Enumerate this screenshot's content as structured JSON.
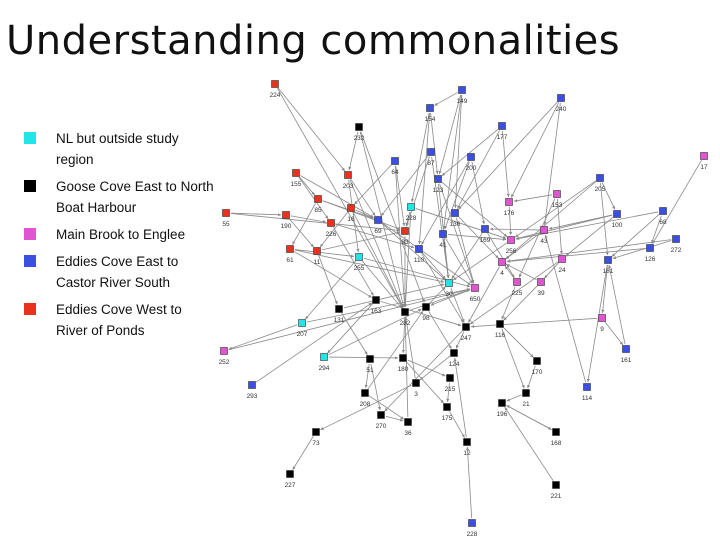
{
  "slide": {
    "title": "Understanding commonalities"
  },
  "legend": [
    {
      "label": "NL but outside study region",
      "color": "#22e5e5",
      "swatch": "cyan-swatch"
    },
    {
      "label": "Goose Cove East to North Boat Harbour",
      "color": "#000000",
      "swatch": "black-swatch"
    },
    {
      "label": "Main Brook to Englee",
      "color": "#e055d2",
      "swatch": "magenta-swatch"
    },
    {
      "label": "Eddies Cove East to Castor River South",
      "color": "#3b4fe0",
      "swatch": "blue-swatch"
    },
    {
      "label": "Eddies Cove West to River of Ponds",
      "color": "#e8321e",
      "swatch": "red-swatch"
    }
  ],
  "groups": {
    "cyan": "#22e5e5",
    "black": "#000000",
    "magenta": "#e055d2",
    "blue": "#3b4fe0",
    "red": "#e8321e"
  },
  "edge_color": "#8a8a8a",
  "nodes": [
    {
      "id": "224",
      "g": "red"
    },
    {
      "id": "149",
      "g": "blue"
    },
    {
      "id": "240",
      "g": "blue"
    },
    {
      "id": "154",
      "g": "blue"
    },
    {
      "id": "232",
      "g": "black"
    },
    {
      "id": "177",
      "g": "blue"
    },
    {
      "id": "87",
      "g": "blue"
    },
    {
      "id": "200",
      "g": "blue"
    },
    {
      "id": "64",
      "g": "blue"
    },
    {
      "id": "123",
      "g": "blue"
    },
    {
      "id": "155",
      "g": "red"
    },
    {
      "id": "203",
      "g": "red"
    },
    {
      "id": "205",
      "g": "blue"
    },
    {
      "id": "17",
      "g": "magenta"
    },
    {
      "id": "153",
      "g": "magenta"
    },
    {
      "id": "176",
      "g": "magenta"
    },
    {
      "id": "85",
      "g": "red"
    },
    {
      "id": "55",
      "g": "red"
    },
    {
      "id": "190",
      "g": "red"
    },
    {
      "id": "16",
      "g": "red"
    },
    {
      "id": "226",
      "g": "red"
    },
    {
      "id": "228",
      "g": "cyan"
    },
    {
      "id": "69",
      "g": "blue"
    },
    {
      "id": "100",
      "g": "blue"
    },
    {
      "id": "68",
      "g": "blue"
    },
    {
      "id": "272",
      "g": "blue"
    },
    {
      "id": "43",
      "g": "magenta"
    },
    {
      "id": "169",
      "g": "blue"
    },
    {
      "id": "136",
      "g": "blue"
    },
    {
      "id": "256",
      "g": "magenta"
    },
    {
      "id": "61",
      "g": "red"
    },
    {
      "id": "11",
      "g": "red"
    },
    {
      "id": "255",
      "g": "cyan"
    },
    {
      "id": "110",
      "g": "blue"
    },
    {
      "id": "181",
      "g": "blue"
    },
    {
      "id": "126",
      "g": "blue"
    },
    {
      "id": "24",
      "g": "magenta"
    },
    {
      "id": "4",
      "g": "magenta"
    },
    {
      "id": "83",
      "g": "red"
    },
    {
      "id": "41",
      "g": "blue"
    },
    {
      "id": "30",
      "g": "cyan"
    },
    {
      "id": "225",
      "g": "magenta"
    },
    {
      "id": "39",
      "g": "magenta"
    },
    {
      "id": "650",
      "g": "magenta"
    },
    {
      "id": "163",
      "g": "black"
    },
    {
      "id": "131",
      "g": "black"
    },
    {
      "id": "282",
      "g": "black"
    },
    {
      "id": "98",
      "g": "black"
    },
    {
      "id": "207",
      "g": "cyan"
    },
    {
      "id": "9",
      "g": "magenta"
    },
    {
      "id": "116",
      "g": "black"
    },
    {
      "id": "247",
      "g": "black"
    },
    {
      "id": "252",
      "g": "magenta"
    },
    {
      "id": "294",
      "g": "cyan"
    },
    {
      "id": "51",
      "g": "black"
    },
    {
      "id": "180",
      "g": "black"
    },
    {
      "id": "124",
      "g": "black"
    },
    {
      "id": "270",
      "g": "black"
    },
    {
      "id": "161",
      "g": "blue"
    },
    {
      "id": "170",
      "g": "black"
    },
    {
      "id": "293",
      "g": "blue"
    },
    {
      "id": "114",
      "g": "blue"
    },
    {
      "id": "208",
      "g": "black"
    },
    {
      "id": "215",
      "g": "black"
    },
    {
      "id": "21",
      "g": "black"
    },
    {
      "id": "3",
      "g": "black"
    },
    {
      "id": "175",
      "g": "black"
    },
    {
      "id": "196",
      "g": "black"
    },
    {
      "id": "36",
      "g": "black"
    },
    {
      "id": "73",
      "g": "black"
    },
    {
      "id": "168",
      "g": "black"
    },
    {
      "id": "12",
      "g": "black"
    },
    {
      "id": "227",
      "g": "black"
    },
    {
      "id": "221",
      "g": "black"
    },
    {
      "id": "228",
      "g": "blue"
    }
  ]
}
